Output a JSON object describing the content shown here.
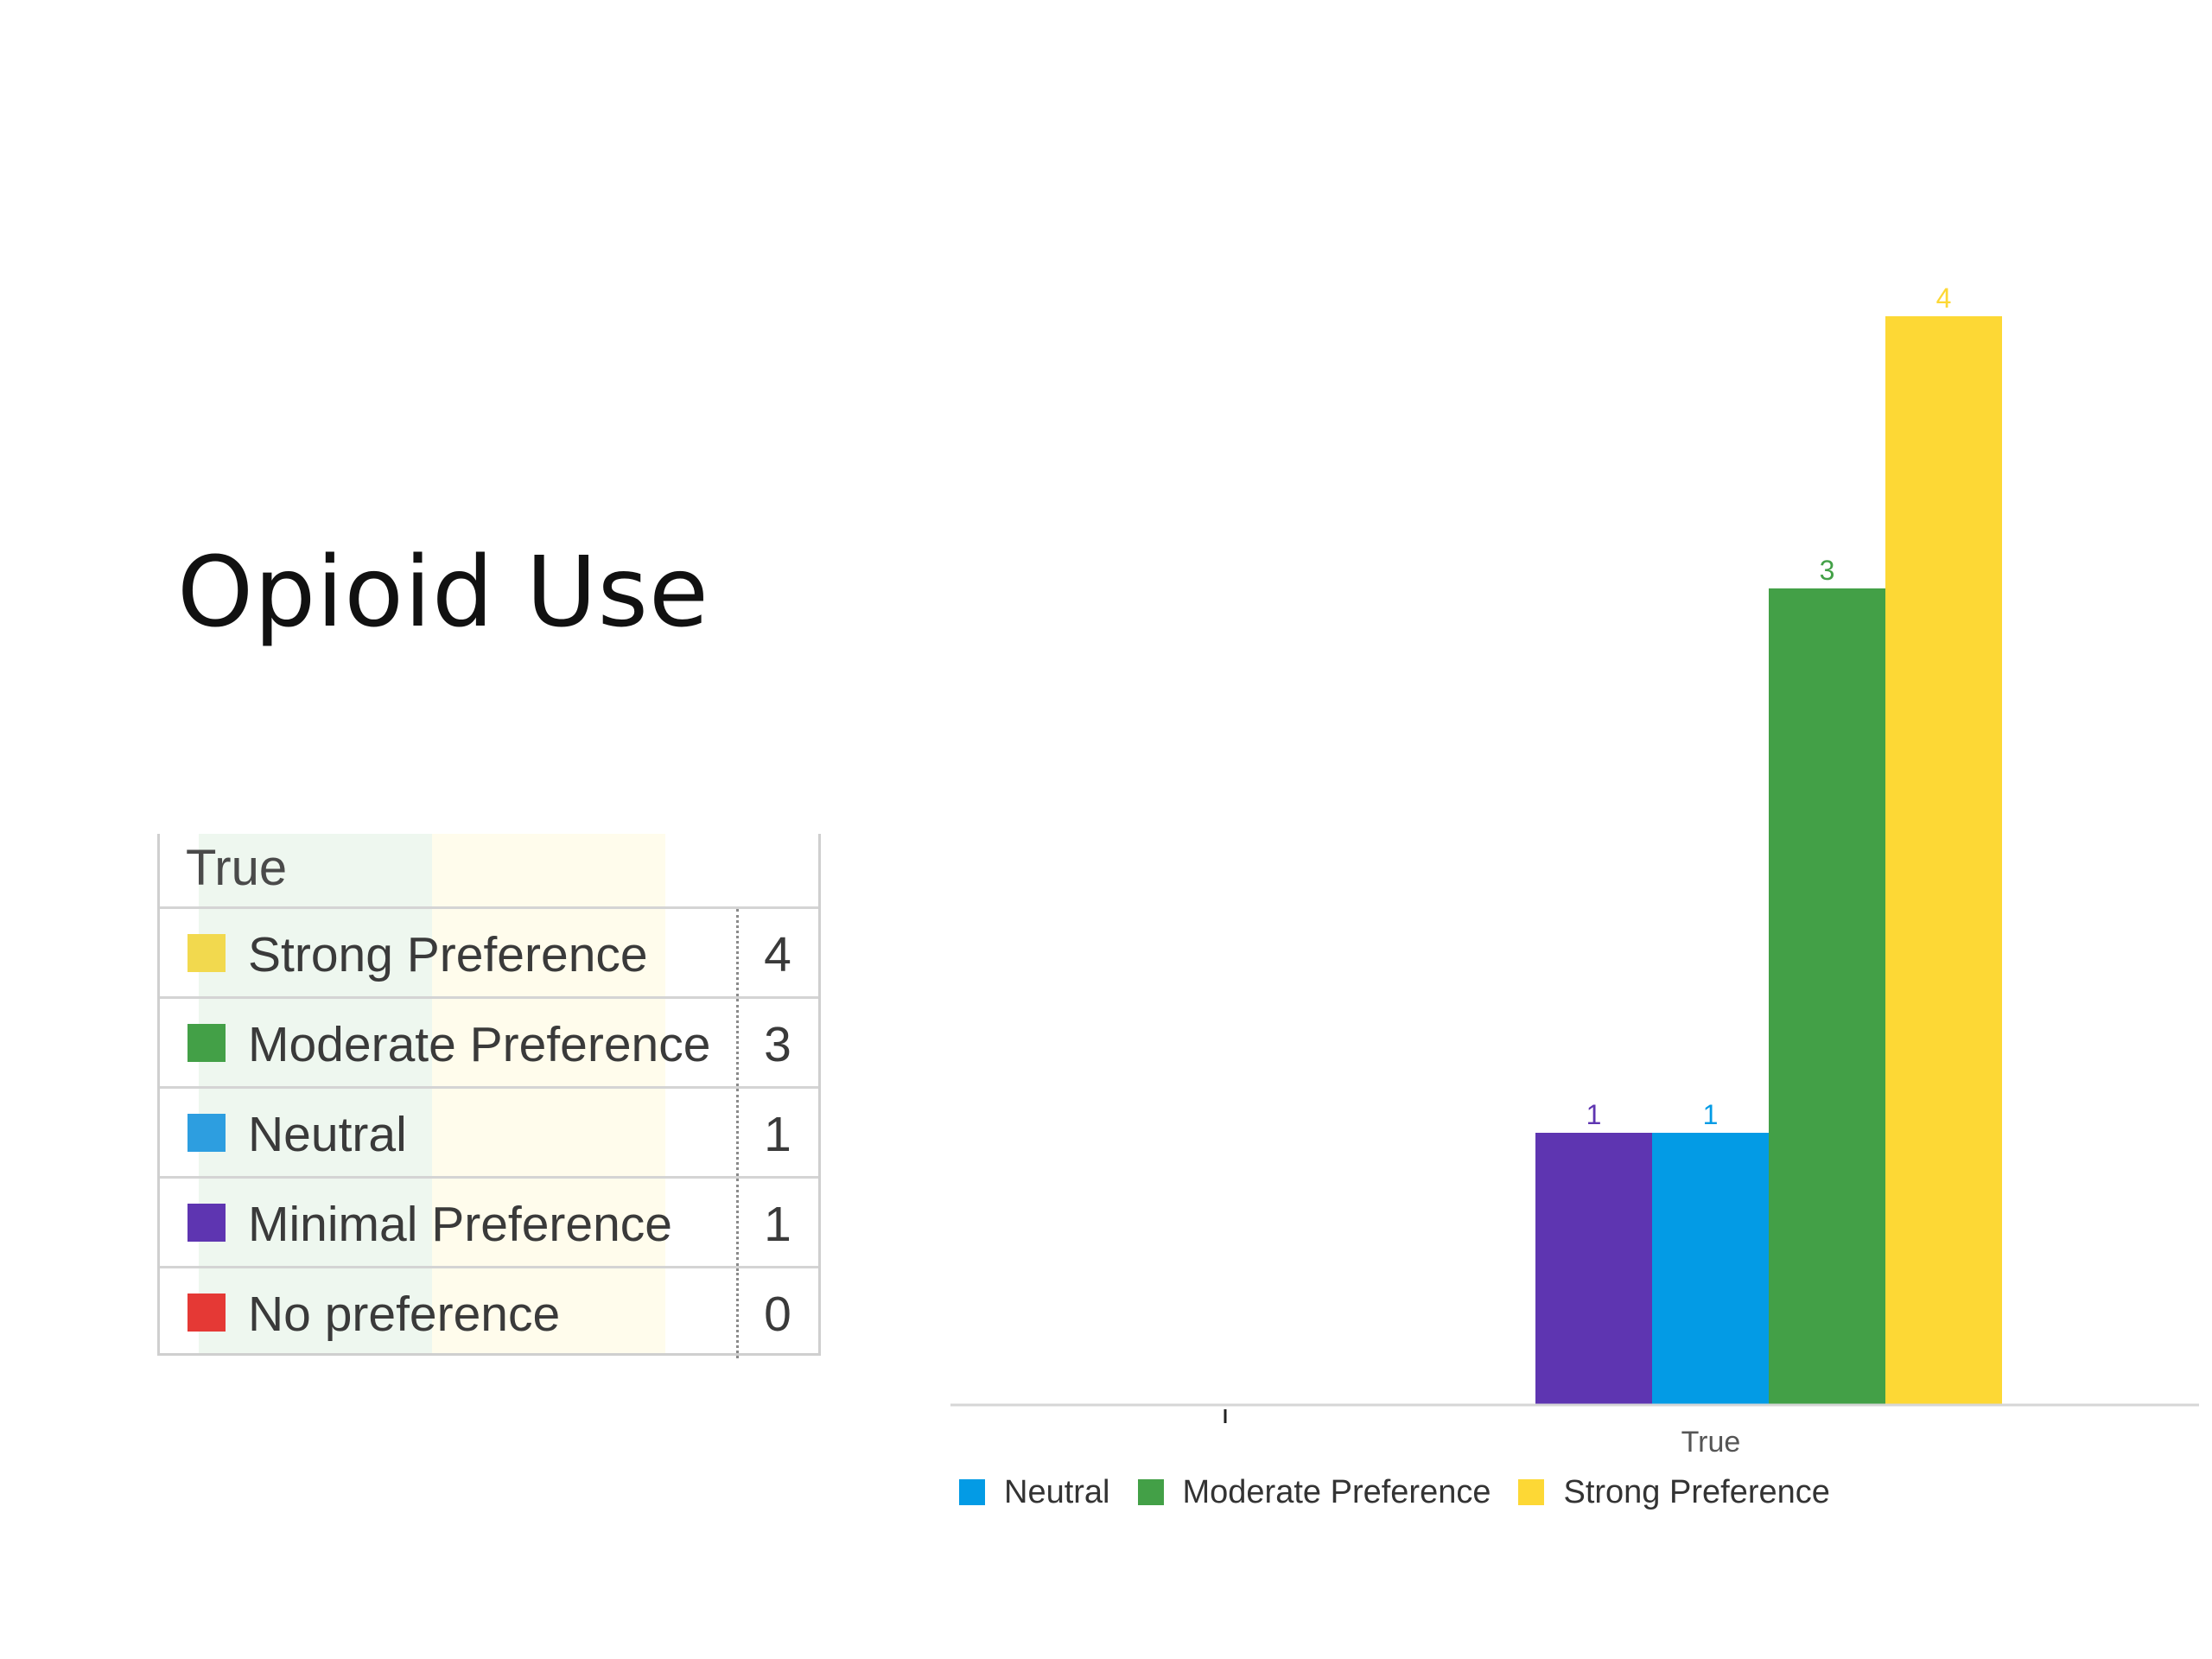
{
  "slide": {
    "title": "Opioid Use"
  },
  "colors": {
    "strong": "#fcd533",
    "moderate": "#43a047",
    "neutral": "#039be5",
    "minimal": "#5e35b1",
    "none": "#e53935",
    "table_tint_green": "#eef7ef",
    "table_tint_yellow": "#fffcec"
  },
  "table": {
    "header": "True",
    "rows": [
      {
        "label": "Strong Preference",
        "count": "4",
        "color": "#f2d94e"
      },
      {
        "label": "Moderate Preference",
        "count": "3",
        "color": "#43a047"
      },
      {
        "label": "Neutral",
        "count": "1",
        "color": "#2d9ee0"
      },
      {
        "label": "Minimal Preference",
        "count": "1",
        "color": "#5e35b1"
      },
      {
        "label": "No preference",
        "count": "0",
        "color": "#e53935"
      }
    ]
  },
  "chart_data": {
    "type": "bar",
    "categories": [
      "",
      "True"
    ],
    "series": [
      {
        "name": "Minimal Preference",
        "values": [
          0,
          1
        ],
        "color": "#5e35b1"
      },
      {
        "name": "Neutral",
        "values": [
          0,
          1
        ],
        "color": "#039be5"
      },
      {
        "name": "Moderate Preference",
        "values": [
          0,
          3
        ],
        "color": "#43a047"
      },
      {
        "name": "Strong Preference",
        "values": [
          0,
          4
        ],
        "color": "#fdd835"
      }
    ],
    "data_labels": true,
    "ylim": [
      0,
      4
    ],
    "grid": false,
    "legend_position": "bottom-left",
    "legend": [
      {
        "label": "Neutral",
        "color": "#039be5"
      },
      {
        "label": "Moderate Preference",
        "color": "#43a047"
      },
      {
        "label": "Strong Preference",
        "color": "#fdd835"
      }
    ]
  }
}
